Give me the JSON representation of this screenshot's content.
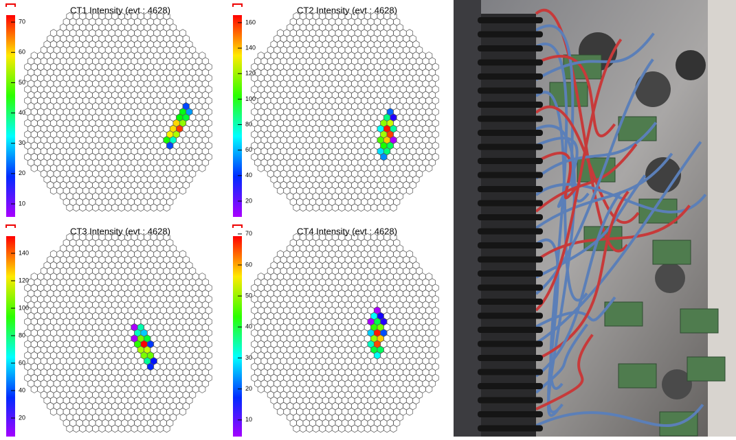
{
  "panels": [
    {
      "title": "CT1 Intensity (evt : 4628)",
      "zlim": [
        5.7,
        72.3
      ],
      "zticks": [
        10,
        20,
        30,
        40,
        50,
        60,
        70
      ]
    },
    {
      "title": "CT2 Intensity (evt : 4628)",
      "zlim": [
        7.6,
        165.9
      ],
      "zticks": [
        20,
        40,
        60,
        80,
        100,
        120,
        140,
        160
      ]
    },
    {
      "title": "CT3 Intensity (evt : 4628)",
      "zlim": [
        5.5,
        152.5
      ],
      "zticks": [
        20,
        40,
        60,
        80,
        100,
        120,
        140
      ]
    },
    {
      "title": "CT4 Intensity (evt : 4628)",
      "zlim": [
        4.2,
        69.3
      ],
      "zticks": [
        10,
        20,
        30,
        40,
        50,
        60,
        70
      ]
    }
  ]
}
